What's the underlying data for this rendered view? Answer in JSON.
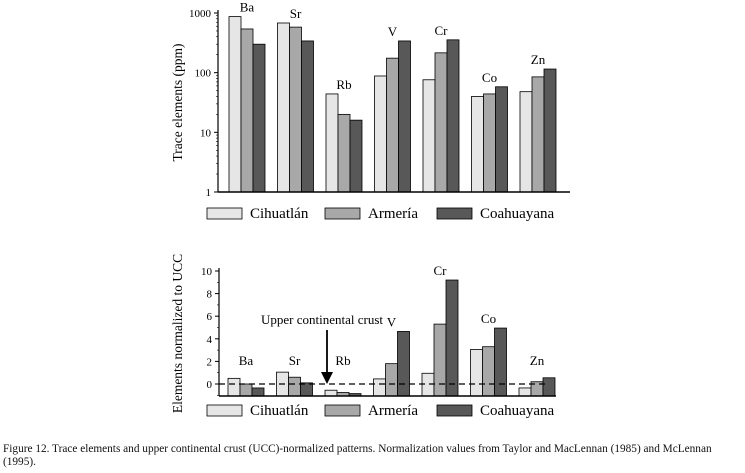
{
  "chart_data": [
    {
      "type": "bar",
      "ylabel": "Trace elements (ppm)",
      "yscale": "log",
      "ylim": [
        1,
        1000
      ],
      "yticks": [
        "1",
        "10",
        "100",
        "1000"
      ],
      "categories": [
        "Ba",
        "Sr",
        "Rb",
        "V",
        "Cr",
        "Co",
        "Zn"
      ],
      "series": [
        {
          "name": "Cihuatlán",
          "color": "#e6e6e6",
          "values": [
            870,
            680,
            44,
            88,
            76,
            40,
            48
          ]
        },
        {
          "name": "Armería",
          "color": "#a8a8a8",
          "values": [
            540,
            580,
            20,
            175,
            215,
            44,
            85
          ]
        },
        {
          "name": "Coahuayana",
          "color": "#585858",
          "values": [
            300,
            340,
            16,
            340,
            355,
            58,
            115
          ]
        }
      ],
      "legend": "bottom"
    },
    {
      "type": "bar",
      "ylabel": "Elements normalized to UCC",
      "ylim": [
        -1,
        10
      ],
      "yticks": [
        "0",
        "2",
        "4",
        "6",
        "8",
        "10"
      ],
      "categories": [
        "Ba",
        "Sr",
        "Rb",
        "V",
        "Cr",
        "Co",
        "Zn"
      ],
      "series": [
        {
          "name": "Cihuatlán",
          "color": "#e6e6e6",
          "values": [
            0.5,
            1.05,
            -0.55,
            0.45,
            0.95,
            3.05,
            -0.35
          ]
        },
        {
          "name": "Armería",
          "color": "#a8a8a8",
          "values": [
            0.0,
            0.6,
            -0.75,
            1.8,
            5.3,
            3.3,
            0.2
          ]
        },
        {
          "name": "Coahuayana",
          "color": "#585858",
          "values": [
            -0.35,
            0.1,
            -0.85,
            4.65,
            9.2,
            4.95,
            0.55
          ]
        }
      ],
      "reference_line": {
        "value": 0,
        "style": "dashed"
      },
      "annotation": "Upper continental crust",
      "legend": "bottom"
    }
  ],
  "caption": "Figure 12. Trace elements and upper continental crust (UCC)-normalized patterns. Normalization values from Taylor and MacLennan (1985) and McLennan (1995)."
}
